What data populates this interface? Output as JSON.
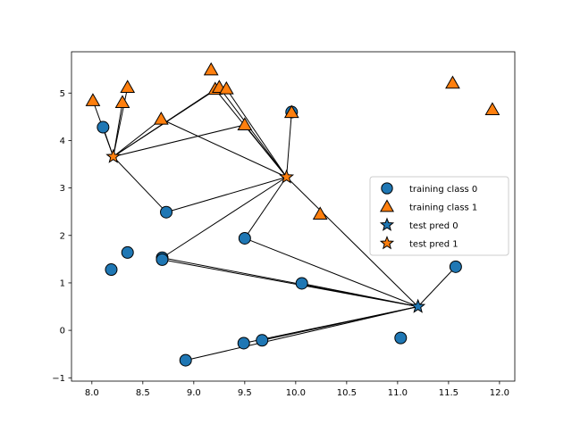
{
  "chart_data": {
    "type": "scatter",
    "title": "",
    "xlabel": "",
    "ylabel": "",
    "xlim": [
      7.8,
      12.15
    ],
    "ylim": [
      -1.07,
      5.87
    ],
    "x_ticks": [
      8.0,
      8.5,
      9.0,
      9.5,
      10.0,
      10.5,
      11.0,
      11.5,
      12.0
    ],
    "y_ticks": [
      -1,
      0,
      1,
      2,
      3,
      4,
      5
    ],
    "x_tick_labels": [
      "8.0",
      "8.5",
      "9.0",
      "9.5",
      "10.0",
      "10.5",
      "11.0",
      "11.5",
      "12.0"
    ],
    "y_tick_labels": [
      "−1",
      "0",
      "1",
      "2",
      "3",
      "4",
      "5"
    ],
    "grid": false,
    "legend_placement": "center-right",
    "series": [
      {
        "name": "training class 0",
        "marker": "circle",
        "color": "#1f77b4",
        "points": [
          [
            9.96,
            4.6
          ],
          [
            8.11,
            4.28
          ],
          [
            8.73,
            2.49
          ],
          [
            9.5,
            1.94
          ],
          [
            8.35,
            1.64
          ],
          [
            8.19,
            1.28
          ],
          [
            8.69,
            1.53
          ],
          [
            8.69,
            1.49
          ],
          [
            10.06,
            0.99
          ],
          [
            11.57,
            1.34
          ],
          [
            11.03,
            -0.16
          ],
          [
            9.67,
            -0.21
          ],
          [
            9.49,
            -0.27
          ],
          [
            8.92,
            -0.63
          ]
        ]
      },
      {
        "name": "training class 1",
        "marker": "triangle",
        "color": "#ff7f0e",
        "points": [
          [
            8.01,
            4.84
          ],
          [
            8.3,
            4.8
          ],
          [
            8.35,
            5.12
          ],
          [
            9.17,
            5.49
          ],
          [
            9.21,
            5.08
          ],
          [
            9.25,
            5.12
          ],
          [
            9.32,
            5.09
          ],
          [
            8.68,
            4.45
          ],
          [
            9.5,
            4.33
          ],
          [
            9.96,
            4.59
          ],
          [
            10.24,
            2.45
          ],
          [
            11.54,
            5.21
          ],
          [
            11.93,
            4.65
          ]
        ]
      },
      {
        "name": "test pred 0",
        "marker": "star",
        "color": "#1f77b4",
        "points": [
          [
            11.2,
            0.5
          ]
        ]
      },
      {
        "name": "test pred 1",
        "marker": "star",
        "color": "#ff7f0e",
        "points": [
          [
            8.21,
            3.66
          ],
          [
            9.91,
            3.23
          ]
        ]
      }
    ],
    "neighbor_lines": [
      [
        [
          8.21,
          3.66
        ],
        [
          8.11,
          4.28
        ]
      ],
      [
        [
          8.21,
          3.66
        ],
        [
          8.01,
          4.84
        ]
      ],
      [
        [
          8.21,
          3.66
        ],
        [
          8.3,
          4.8
        ]
      ],
      [
        [
          8.21,
          3.66
        ],
        [
          8.35,
          5.12
        ]
      ],
      [
        [
          8.21,
          3.66
        ],
        [
          9.21,
          5.08
        ]
      ],
      [
        [
          8.21,
          3.66
        ],
        [
          9.25,
          5.12
        ]
      ],
      [
        [
          8.21,
          3.66
        ],
        [
          8.68,
          4.45
        ]
      ],
      [
        [
          8.21,
          3.66
        ],
        [
          9.5,
          4.33
        ]
      ],
      [
        [
          8.21,
          3.66
        ],
        [
          8.73,
          2.49
        ]
      ],
      [
        [
          9.91,
          3.23
        ],
        [
          8.68,
          4.45
        ]
      ],
      [
        [
          9.91,
          3.23
        ],
        [
          9.21,
          5.08
        ]
      ],
      [
        [
          9.91,
          3.23
        ],
        [
          9.25,
          5.12
        ]
      ],
      [
        [
          9.91,
          3.23
        ],
        [
          9.32,
          5.09
        ]
      ],
      [
        [
          9.91,
          3.23
        ],
        [
          9.5,
          4.33
        ]
      ],
      [
        [
          9.91,
          3.23
        ],
        [
          9.96,
          4.59
        ]
      ],
      [
        [
          9.91,
          3.23
        ],
        [
          8.69,
          1.53
        ]
      ],
      [
        [
          9.91,
          3.23
        ],
        [
          9.5,
          1.94
        ]
      ],
      [
        [
          9.91,
          3.23
        ],
        [
          8.73,
          2.49
        ]
      ],
      [
        [
          11.2,
          0.5
        ],
        [
          9.91,
          3.23
        ]
      ],
      [
        [
          11.2,
          0.5
        ],
        [
          11.57,
          1.34
        ]
      ],
      [
        [
          11.2,
          0.5
        ],
        [
          9.5,
          1.94
        ]
      ],
      [
        [
          11.2,
          0.5
        ],
        [
          8.69,
          1.53
        ]
      ],
      [
        [
          11.2,
          0.5
        ],
        [
          8.69,
          1.49
        ]
      ],
      [
        [
          11.2,
          0.5
        ],
        [
          10.06,
          0.99
        ]
      ],
      [
        [
          11.2,
          0.5
        ],
        [
          9.67,
          -0.21
        ]
      ],
      [
        [
          11.2,
          0.5
        ],
        [
          9.49,
          -0.27
        ]
      ],
      [
        [
          11.2,
          0.5
        ],
        [
          8.92,
          -0.63
        ]
      ]
    ]
  }
}
